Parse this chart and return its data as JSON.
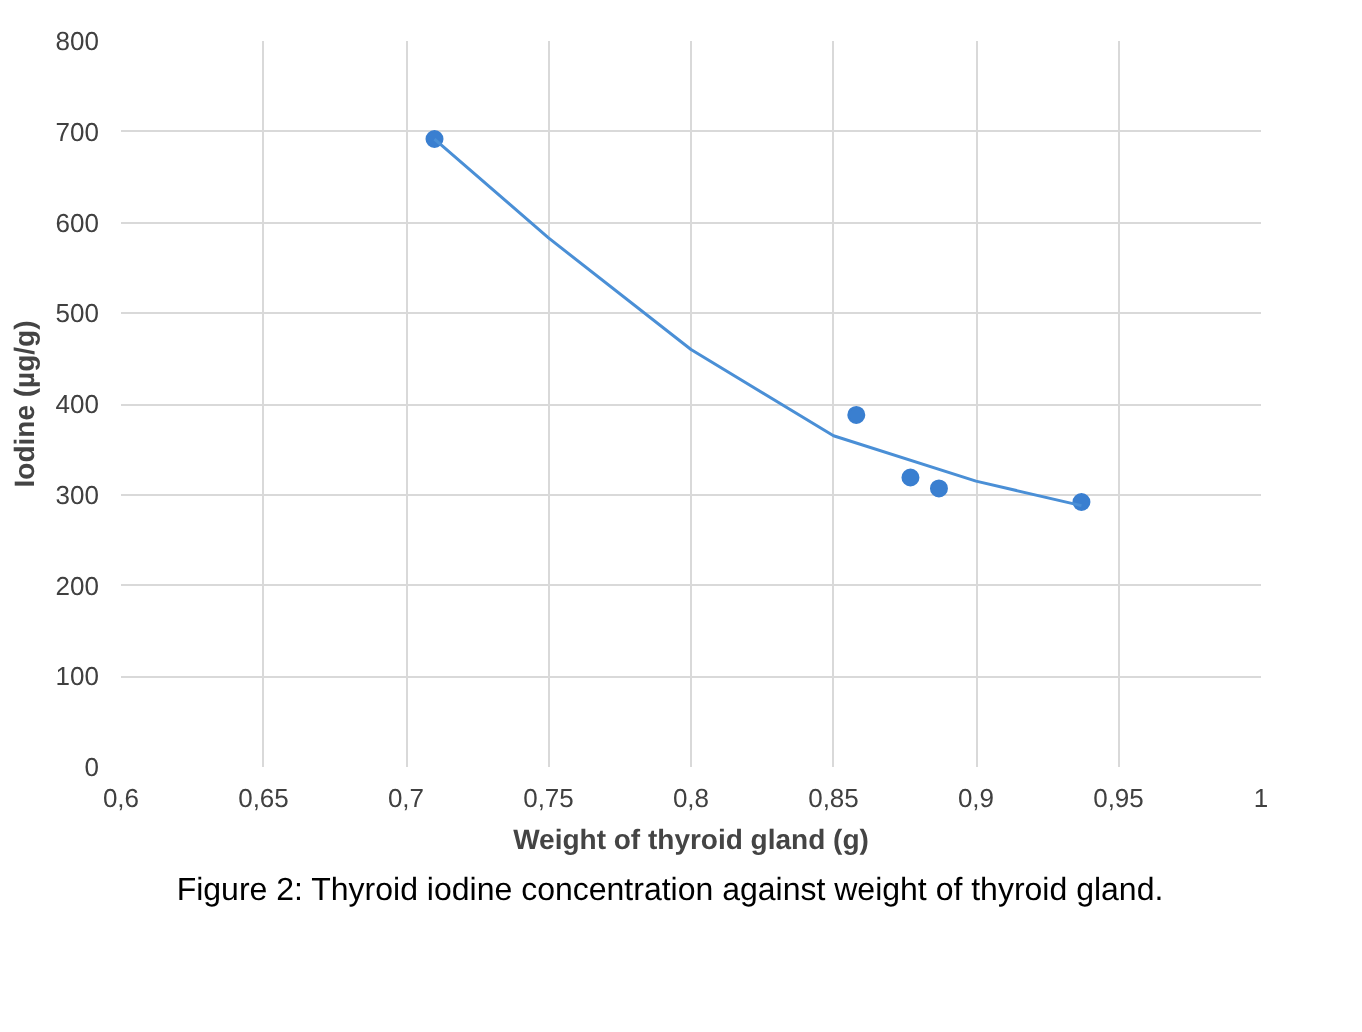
{
  "chart_data": {
    "type": "scatter",
    "xlabel": "Weight of thyroid gland (g)",
    "ylabel": "Iodine (µg/g)",
    "annotations": [
      "Figure 2: Thyroid iodine concentration against weight of thyroid gland."
    ],
    "series": [
      {
        "color": "#3a7fd0",
        "marker": "circle",
        "x": [
          0.71,
          0.858,
          0.877,
          0.887,
          0.937
        ],
        "values": [
          692,
          388,
          319,
          307,
          292
        ]
      },
      {
        "type": "line",
        "color": "#4a8fd6",
        "x": [
          0.71,
          0.75,
          0.8,
          0.85,
          0.9,
          0.937
        ],
        "values": [
          692,
          583,
          460,
          365,
          315,
          288
        ]
      }
    ],
    "xlim": [
      0.6,
      1
    ],
    "ylim": [
      0,
      800
    ],
    "xticks": [
      {
        "value": 0.6,
        "label": "0,6"
      },
      {
        "value": 0.65,
        "label": "0,65"
      },
      {
        "value": 0.7,
        "label": "0,7"
      },
      {
        "value": 0.75,
        "label": "0,75"
      },
      {
        "value": 0.8,
        "label": "0,8"
      },
      {
        "value": 0.85,
        "label": "0,85"
      },
      {
        "value": 0.9,
        "label": "0,9"
      },
      {
        "value": 0.95,
        "label": "0,95"
      },
      1
    ],
    "yticks": [
      0,
      100,
      200,
      300,
      400,
      500,
      600,
      700,
      800
    ],
    "grid": true
  }
}
